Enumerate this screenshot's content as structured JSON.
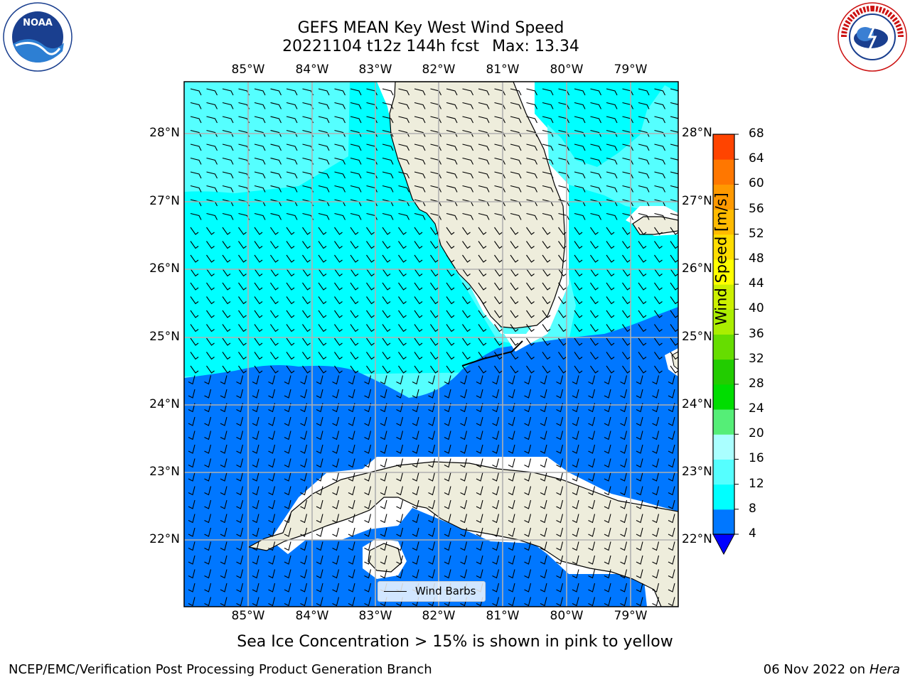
{
  "title": {
    "line1": "GEFS MEAN Key West Wind Speed",
    "line2_run": "20221104 t12z 144h fcst",
    "line2_max": "Max: 13.34"
  },
  "logos": {
    "left": {
      "icon": "noaa-logo",
      "text": "NOAA"
    },
    "right": {
      "icon": "nws-logo",
      "text": "NATIONAL WEATHER SERVICE"
    }
  },
  "map": {
    "lon_labels": [
      "85°W",
      "84°W",
      "83°W",
      "82°W",
      "81°W",
      "80°W",
      "79°W"
    ],
    "lat_labels": [
      "28°N",
      "27°N",
      "26°N",
      "25°N",
      "24°N",
      "23°N",
      "22°N"
    ],
    "legend_label": "Wind Barbs",
    "colors": {
      "land": "#eeeddc",
      "wind_8_12": "#00ffff",
      "wind_12_16": "#55ffff",
      "wind_4_8": "#0077ff",
      "gridlines": "#b0b0b0",
      "coast": "#000000"
    }
  },
  "colorbar": {
    "title": "Wind Speed [m/s]",
    "ticks": [
      "4",
      "8",
      "12",
      "16",
      "20",
      "24",
      "28",
      "32",
      "36",
      "40",
      "44",
      "48",
      "52",
      "56",
      "60",
      "64",
      "68"
    ],
    "colors": [
      "#0077ff",
      "#00ffff",
      "#55ffff",
      "#aaffff",
      "#55ee77",
      "#00dd00",
      "#22cc00",
      "#66dd00",
      "#aaee00",
      "#ccf000",
      "#ffff00",
      "#ffdd00",
      "#ffbb00",
      "#ff9900",
      "#ff7700",
      "#ff4400",
      "#ff2200",
      "#ff0000"
    ],
    "extend_color": "#0000ff"
  },
  "caption": "Sea Ice Concentration > 15% is shown in pink to yellow",
  "footer": {
    "left": "NCEP/EMC/Verification Post Processing Product Generation Branch",
    "right_date": "06 Nov 2022 on",
    "right_host": "Hera"
  }
}
